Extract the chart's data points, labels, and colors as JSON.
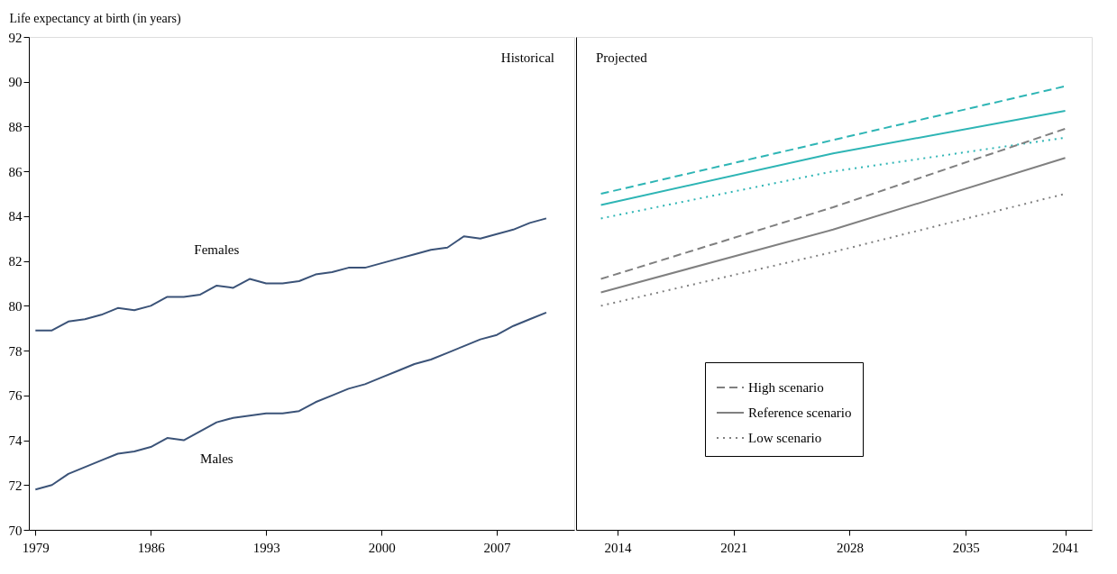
{
  "chart_data": [
    {
      "type": "line",
      "ylabel": "Life expectancy at birth (in years)",
      "annotations": [
        "Historical"
      ],
      "x": [
        1979,
        1980,
        1981,
        1982,
        1983,
        1984,
        1985,
        1986,
        1987,
        1988,
        1989,
        1990,
        1991,
        1992,
        1993,
        1994,
        1995,
        1996,
        1997,
        1998,
        1999,
        2000,
        2001,
        2002,
        2003,
        2004,
        2005,
        2006,
        2007,
        2008,
        2009,
        2010
      ],
      "series": [
        {
          "name": "Females",
          "color": "#3b5378",
          "values": [
            78.9,
            78.9,
            79.3,
            79.4,
            79.6,
            79.9,
            79.8,
            80.0,
            80.4,
            80.4,
            80.5,
            80.9,
            80.8,
            81.2,
            81.0,
            81.0,
            81.1,
            81.4,
            81.5,
            81.7,
            81.7,
            81.9,
            82.1,
            82.3,
            82.5,
            82.6,
            83.1,
            83.0,
            83.2,
            83.4,
            83.7,
            83.9
          ]
        },
        {
          "name": "Males",
          "color": "#3b5378",
          "values": [
            71.8,
            72.0,
            72.5,
            72.8,
            73.1,
            73.4,
            73.5,
            73.7,
            74.1,
            74.0,
            74.4,
            74.8,
            75.0,
            75.1,
            75.2,
            75.2,
            75.3,
            75.7,
            76.0,
            76.3,
            76.5,
            76.8,
            77.1,
            77.4,
            77.6,
            77.9,
            78.2,
            78.5,
            78.7,
            79.1,
            79.4,
            79.7
          ]
        }
      ],
      "xlim": [
        1978.6,
        2011.7
      ],
      "xticks": [
        1979,
        1986,
        1993,
        2000,
        2007
      ],
      "ylim": [
        70,
        92
      ],
      "yticks": [
        70,
        72,
        74,
        76,
        78,
        80,
        82,
        84,
        86,
        88,
        90,
        92
      ],
      "line_style": "solid",
      "grid": false
    },
    {
      "type": "line",
      "annotations": [
        "Projected"
      ],
      "x": [
        2013,
        2027,
        2041
      ],
      "series": [
        {
          "color": "#2eb5b5",
          "line_style": "dashed",
          "values": [
            85.0,
            87.4,
            89.8
          ]
        },
        {
          "color": "#2eb5b5",
          "line_style": "solid",
          "values": [
            84.5,
            86.8,
            88.7
          ]
        },
        {
          "color": "#2eb5b5",
          "line_style": "dotted",
          "values": [
            83.9,
            86.0,
            87.5
          ]
        },
        {
          "name": "High scenario",
          "color": "#808080",
          "line_style": "dashed",
          "values": [
            81.2,
            84.4,
            87.9
          ]
        },
        {
          "name": "Reference scenario",
          "color": "#808080",
          "line_style": "solid",
          "values": [
            80.6,
            83.4,
            86.6
          ]
        },
        {
          "name": "Low scenario",
          "color": "#808080",
          "line_style": "dotted",
          "values": [
            80.0,
            82.4,
            85.0
          ]
        }
      ],
      "xlim": [
        2011.5,
        2042.6
      ],
      "xticks": [
        2014,
        2021,
        2028,
        2035,
        2041
      ],
      "ylim": [
        70,
        92
      ],
      "yticks": [
        70,
        72,
        74,
        76,
        78,
        80,
        82,
        84,
        86,
        88,
        90,
        92
      ],
      "tick_labels": "x",
      "legend": "bottom",
      "grid": false
    }
  ]
}
